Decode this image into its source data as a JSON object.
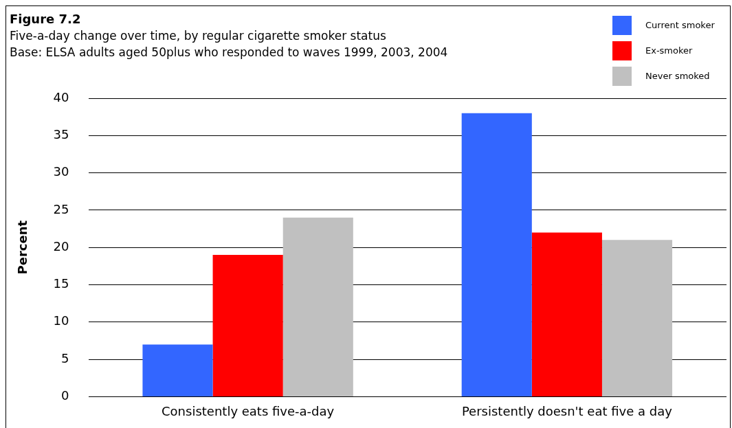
{
  "chart_data": {
    "type": "bar",
    "title": "Figure 7.2",
    "subtitle": "Five-a-day change over time, by regular cigarette smoker status",
    "annotations": [
      "Base: ELSA adults aged 50plus who responded to waves 1999, 2003, 2004"
    ],
    "ylabel": "Percent",
    "categories": [
      "Consistently eats five-a-day",
      "Persistently doesn't eat five a day"
    ],
    "series": [
      {
        "name": "Current smoker",
        "color": "#3366ff",
        "values": [
          7,
          38
        ]
      },
      {
        "name": "Ex-smoker",
        "color": "#ff0000",
        "values": [
          19,
          22
        ]
      },
      {
        "name": "Never smoked",
        "color": "#c0c0c0",
        "values": [
          24,
          21
        ]
      }
    ],
    "ylim": [
      0,
      40
    ],
    "yticks": [
      0,
      5,
      10,
      15,
      20,
      25,
      30,
      35,
      40
    ],
    "grid": "y",
    "legend": "top right"
  }
}
